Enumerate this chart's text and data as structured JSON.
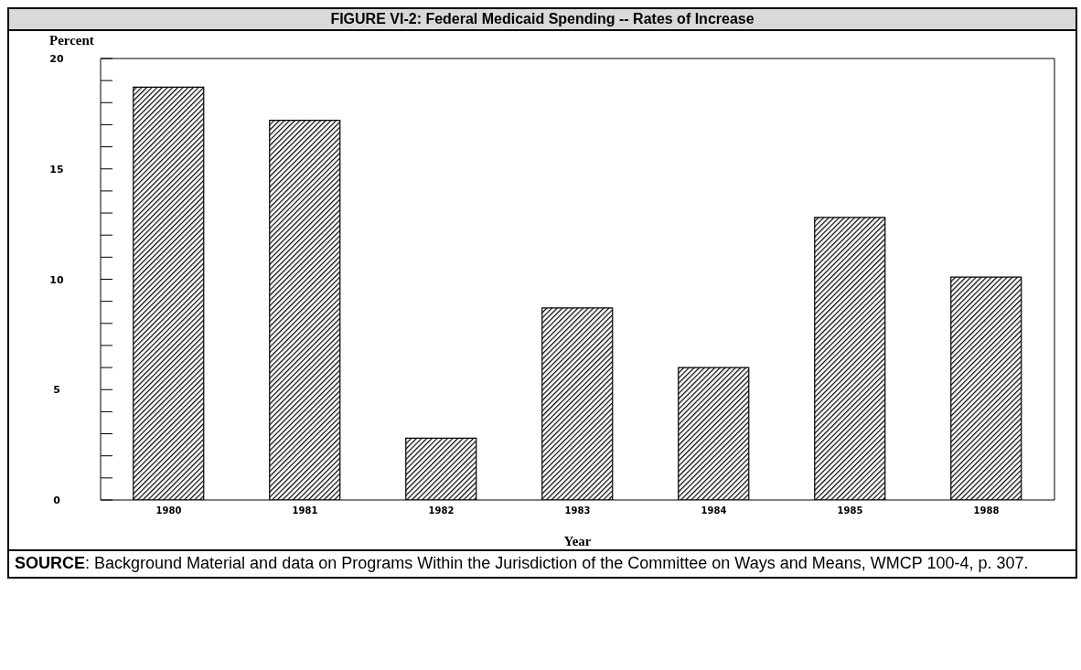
{
  "chart_data": {
    "type": "bar",
    "title": "FIGURE VI-2: Federal Medicaid Spending -- Rates of Increase",
    "ylabel": "Percent",
    "xlabel": "Year",
    "categories": [
      "1980",
      "1981",
      "1982",
      "1983",
      "1984",
      "1985",
      "1988"
    ],
    "values": [
      18.7,
      17.2,
      2.8,
      8.7,
      6.0,
      12.8,
      10.1
    ],
    "color": "#000000",
    "ylim": [
      0,
      20
    ],
    "yticks": [
      0,
      {
        "value": 1,
        "label": null
      },
      {
        "value": 2,
        "label": null
      },
      {
        "value": 3,
        "label": null
      },
      {
        "value": 4,
        "label": null
      },
      5,
      {
        "value": 6,
        "label": null
      },
      {
        "value": 7,
        "label": null
      },
      {
        "value": 8,
        "label": null
      },
      {
        "value": 9,
        "label": null
      },
      10,
      {
        "value": 11,
        "label": null
      },
      {
        "value": 12,
        "label": null
      },
      {
        "value": 13,
        "label": null
      },
      {
        "value": 14,
        "label": null
      },
      15,
      {
        "value": 16,
        "label": null
      },
      {
        "value": 17,
        "label": null
      },
      {
        "value": 18,
        "label": null
      },
      {
        "value": 19,
        "label": null
      },
      20
    ],
    "grid": false,
    "annotations": [
      "SOURCE:  Background Material and data on Programs Within the Jurisdiction of the Committee on Ways and Means, WMCP 100-4, p. 307."
    ]
  }
}
